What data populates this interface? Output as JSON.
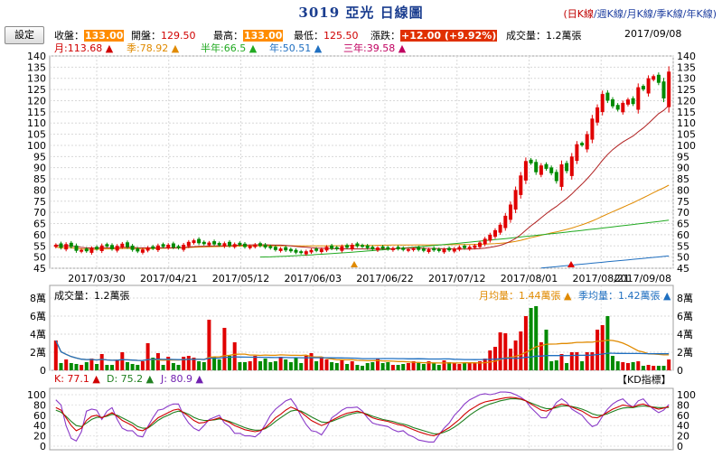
{
  "header": {
    "title": "3019 亞光  日線圖",
    "tabs": [
      "(日K線",
      "週K線",
      "月K線",
      "季K線",
      "年K線)"
    ]
  },
  "settings_button": "設定",
  "quote": {
    "close_label": "收盤：",
    "close": "133.00",
    "open_label": "開盤：",
    "open": "129.50",
    "high_label": "最高：",
    "high": "133.00",
    "low_label": "最低：",
    "low": "125.50",
    "change_label": "漲跌：",
    "change": "+12.00  (+9.92%)",
    "volume": "成交量：1.2萬張",
    "date": "2017/09/08"
  },
  "ma": {
    "month": "月:113.68",
    "season": "季:78.92",
    "half": "半年:66.5",
    "year": "年:50.51",
    "three": "三年:39.58",
    "month_color": "#d00000",
    "season_color": "#e08a00",
    "half_color": "#22aa22",
    "year_color": "#1f6fc0",
    "three_color": "#c00060"
  },
  "volume_panel": {
    "title": "成交量：1.2萬張",
    "month_avg": "月均量：1.44萬張",
    "season_avg": "季均量：1.42萬張"
  },
  "kd_panel": {
    "k": "K: 77.1",
    "d": "D: 75.2",
    "j": "J: 80.9",
    "badge": "【KD指標】"
  },
  "chart_data": {
    "type": "candlestick",
    "price_ylim": [
      45,
      140
    ],
    "price_ticks": [
      45,
      50,
      55,
      60,
      65,
      70,
      75,
      80,
      85,
      90,
      95,
      100,
      105,
      110,
      115,
      120,
      125,
      130,
      135,
      140
    ],
    "x_tick_labels": [
      "2017/03/30",
      "2017/04/21",
      "2017/05/12",
      "2017/06/03",
      "2017/06/22",
      "2017/07/12",
      "2017/08/01",
      "2017/08/21",
      "2017/09/08"
    ],
    "volume_ylim": [
      0,
      8
    ],
    "volume_ticks": [
      "0",
      "2萬",
      "4萬",
      "6萬",
      "8萬"
    ],
    "kd_ticks": [
      0,
      20,
      40,
      60,
      80,
      100
    ],
    "closes": [
      55.5,
      54.2,
      55.8,
      54.6,
      52.8,
      53.2,
      52.6,
      54.0,
      53.5,
      55.2,
      54.8,
      53.6,
      55.0,
      56.0,
      54.5,
      53.2,
      52.5,
      53.4,
      54.2,
      53.8,
      55.2,
      54.6,
      55.5,
      54.3,
      54.0,
      55.5,
      56.8,
      57.5,
      56.2,
      55.8,
      56.5,
      55.7,
      55.3,
      56.2,
      55.0,
      55.8,
      55.4,
      54.5,
      55.0,
      55.6,
      55.0,
      54.3,
      54.0,
      53.2,
      53.8,
      53.0,
      52.6,
      52.0,
      51.8,
      52.6,
      53.2,
      52.8,
      53.6,
      54.6,
      53.8,
      53.5,
      54.8,
      54.2,
      55.5,
      54.8,
      54.6,
      54.0,
      53.5,
      54.2,
      53.8,
      53.5,
      54.0,
      53.6,
      53.2,
      53.5,
      53.8,
      53.2,
      52.8,
      53.5,
      53.0,
      52.7,
      53.5,
      53.0,
      53.8,
      54.5,
      54.0,
      54.6,
      55.2,
      56.5,
      58.2,
      60.0,
      62.0,
      64.5,
      68.5,
      73.5,
      80.0,
      86.5,
      93.0,
      92.0,
      88.0,
      91.0,
      89.5,
      87.5,
      84.0,
      91.5,
      88.5,
      95.0,
      100.5,
      100.0,
      105.0,
      112.0,
      117.0,
      123.0,
      120.0,
      117.5,
      116.0,
      119.0,
      120.5,
      118.5,
      126.0,
      125.0,
      130.0,
      131.0,
      128.0,
      121.0,
      133.0
    ],
    "ups": [
      1,
      0,
      1,
      0,
      0,
      1,
      0,
      1,
      0,
      1,
      0,
      0,
      1,
      1,
      0,
      0,
      0,
      1,
      1,
      0,
      1,
      0,
      1,
      0,
      0,
      1,
      1,
      1,
      0,
      0,
      1,
      0,
      0,
      1,
      0,
      1,
      0,
      0,
      1,
      1,
      0,
      0,
      0,
      0,
      1,
      0,
      0,
      0,
      0,
      1,
      1,
      0,
      1,
      1,
      0,
      0,
      1,
      0,
      1,
      0,
      0,
      0,
      0,
      1,
      0,
      0,
      1,
      0,
      0,
      1,
      1,
      0,
      0,
      1,
      0,
      0,
      1,
      0,
      1,
      1,
      0,
      1,
      1,
      1,
      1,
      1,
      1,
      1,
      1,
      1,
      1,
      1,
      1,
      0,
      0,
      1,
      0,
      0,
      0,
      1,
      0,
      1,
      1,
      0,
      1,
      1,
      1,
      1,
      0,
      0,
      0,
      1,
      1,
      0,
      1,
      0,
      1,
      1,
      0,
      0,
      1
    ],
    "volumes": [
      3.3,
      0.8,
      1.2,
      0.8,
      0.7,
      0.6,
      0.9,
      1.3,
      0.7,
      1.8,
      0.6,
      0.6,
      1.2,
      2.0,
      0.9,
      0.7,
      0.6,
      1.0,
      3.0,
      1.4,
      1.9,
      0.6,
      1.5,
      0.8,
      0.6,
      1.5,
      1.6,
      1.4,
      1.0,
      0.9,
      5.6,
      1.5,
      1.2,
      4.7,
      1.6,
      3.1,
      0.9,
      0.9,
      1.0,
      1.6,
      1.0,
      1.3,
      0.9,
      1.0,
      1.5,
      1.2,
      0.9,
      1.4,
      0.8,
      1.6,
      1.9,
      1.0,
      1.4,
      1.2,
      0.9,
      0.8,
      1.2,
      0.7,
      1.0,
      0.6,
      0.5,
      0.8,
      0.9,
      1.3,
      0.8,
      0.9,
      0.6,
      0.6,
      0.7,
      0.8,
      1.0,
      0.8,
      0.7,
      1.0,
      0.8,
      0.6,
      1.1,
      0.9,
      0.8,
      0.7,
      0.8,
      0.9,
      0.8,
      1.0,
      1.3,
      2.2,
      2.6,
      4.2,
      4.1,
      2.4,
      3.3,
      4.3,
      6.0,
      6.9,
      7.1,
      3.1,
      4.5,
      1.0,
      1.1,
      1.8,
      0.8,
      2.0,
      2.0,
      1.0,
      2.0,
      2.0,
      4.5,
      5.0,
      6.0,
      1.6,
      1.0,
      0.9,
      0.8,
      0.9,
      1.0,
      0.5,
      0.6,
      0.5,
      0.5,
      0.5,
      1.2
    ],
    "kd_k": [
      75,
      70,
      55,
      40,
      30,
      35,
      50,
      58,
      60,
      55,
      60,
      65,
      58,
      50,
      45,
      40,
      32,
      30,
      36,
      46,
      55,
      60,
      65,
      70,
      72,
      65,
      58,
      50,
      45,
      46,
      50,
      52,
      55,
      50,
      46,
      40,
      36,
      32,
      30,
      28,
      30,
      36,
      45,
      55,
      62,
      70,
      76,
      72,
      66,
      58,
      50,
      45,
      40,
      44,
      50,
      55,
      60,
      64,
      66,
      68,
      65,
      60,
      55,
      52,
      50,
      48,
      45,
      42,
      40,
      36,
      32,
      28,
      25,
      22,
      20,
      24,
      30,
      36,
      44,
      52,
      62,
      70,
      76,
      82,
      86,
      88,
      90,
      92,
      94,
      95,
      94,
      92,
      88,
      82,
      76,
      70,
      68,
      72,
      78,
      82,
      80,
      76,
      72,
      68,
      62,
      56,
      55,
      60,
      66,
      72,
      76,
      80,
      78,
      76,
      80,
      82,
      78,
      75,
      72,
      74,
      77
    ],
    "kd_d": [
      70,
      66,
      58,
      48,
      40,
      38,
      45,
      52,
      56,
      56,
      58,
      62,
      60,
      55,
      50,
      45,
      38,
      35,
      35,
      42,
      50,
      56,
      60,
      65,
      68,
      66,
      62,
      56,
      52,
      50,
      50,
      51,
      53,
      51,
      48,
      44,
      40,
      36,
      33,
      31,
      31,
      34,
      40,
      48,
      55,
      62,
      68,
      70,
      68,
      63,
      57,
      52,
      47,
      46,
      48,
      52,
      56,
      60,
      63,
      65,
      65,
      62,
      58,
      55,
      52,
      50,
      48,
      45,
      43,
      40,
      36,
      33,
      30,
      27,
      24,
      24,
      27,
      31,
      37,
      44,
      52,
      60,
      67,
      73,
      78,
      82,
      85,
      88,
      90,
      92,
      92,
      91,
      88,
      84,
      80,
      76,
      73,
      73,
      75,
      78,
      78,
      77,
      75,
      72,
      68,
      63,
      60,
      60,
      63,
      67,
      71,
      74,
      75,
      75,
      77,
      78,
      77,
      76,
      75,
      75,
      75.2
    ],
    "kd_j": [
      90,
      80,
      40,
      15,
      10,
      28,
      68,
      72,
      70,
      52,
      68,
      75,
      52,
      35,
      30,
      30,
      20,
      18,
      38,
      55,
      70,
      72,
      78,
      82,
      82,
      60,
      45,
      35,
      30,
      40,
      52,
      56,
      60,
      45,
      38,
      25,
      25,
      20,
      20,
      18,
      26,
      42,
      60,
      72,
      80,
      88,
      92,
      78,
      58,
      42,
      30,
      28,
      22,
      36,
      55,
      62,
      70,
      75,
      75,
      76,
      68,
      55,
      45,
      42,
      40,
      38,
      32,
      28,
      30,
      22,
      18,
      12,
      10,
      8,
      8,
      22,
      35,
      45,
      60,
      70,
      82,
      90,
      95,
      100,
      102,
      100,
      102,
      105,
      105,
      104,
      100,
      95,
      88,
      75,
      65,
      55,
      55,
      70,
      85,
      92,
      85,
      72,
      66,
      60,
      48,
      38,
      42,
      58,
      72,
      82,
      88,
      92,
      82,
      76,
      88,
      92,
      80,
      72,
      65,
      70,
      80.9
    ],
    "first_volume_date_label": "2017/03/30"
  }
}
